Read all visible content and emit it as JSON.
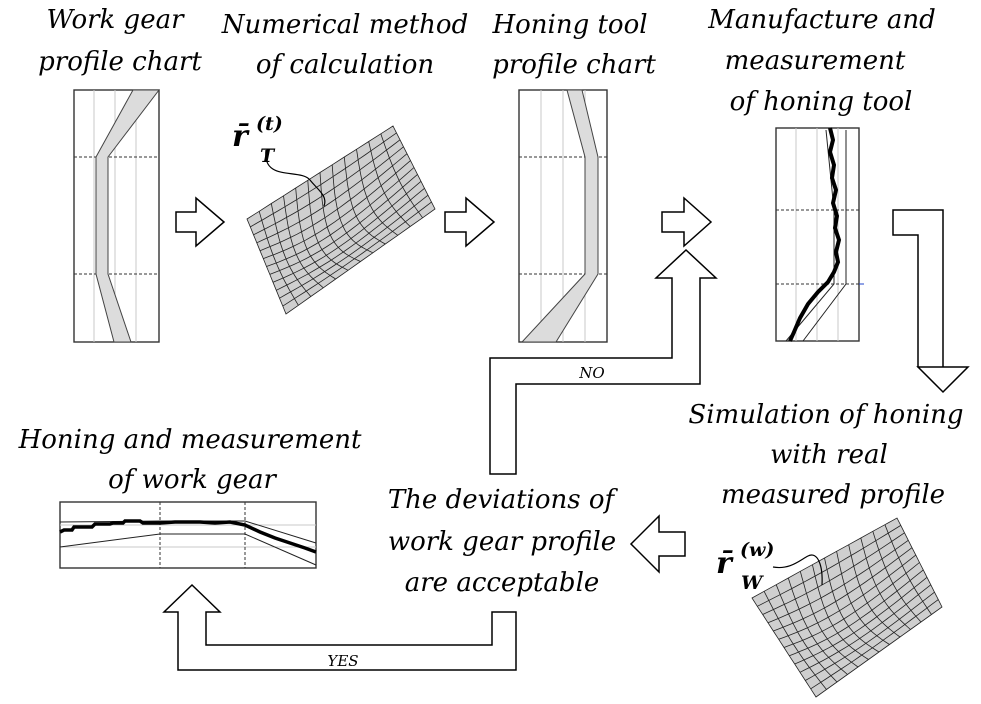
{
  "steps": {
    "work_gear_profile_chart": [
      "Work gear",
      "profile chart"
    ],
    "numerical_method": [
      "Numerical method",
      "of calculation"
    ],
    "honing_tool_profile_chart": [
      "Honing tool",
      "profile chart"
    ],
    "manufacture_measurement": [
      "Manufacture and",
      "measurement",
      "of honing tool"
    ],
    "simulation": [
      "Simulation of honing",
      "with real",
      "measured profile"
    ],
    "deviations_check": [
      "The deviations of",
      "work gear profile",
      "are acceptable"
    ],
    "honing_measurement": [
      "Honing and measurement",
      "of work gear"
    ]
  },
  "branches": {
    "no": "NO",
    "yes": "YES"
  },
  "symbols": {
    "tool_surface": {
      "base": "r̄",
      "sup": "(t)",
      "sub": "T"
    },
    "work_surface": {
      "base": "r̄",
      "sup": "(w)",
      "sub": "W"
    }
  },
  "colors": {
    "band_fill": "#dcdcdc",
    "mesh_fill": "#cfcfcf",
    "arrow_fill": "#ffffff"
  }
}
